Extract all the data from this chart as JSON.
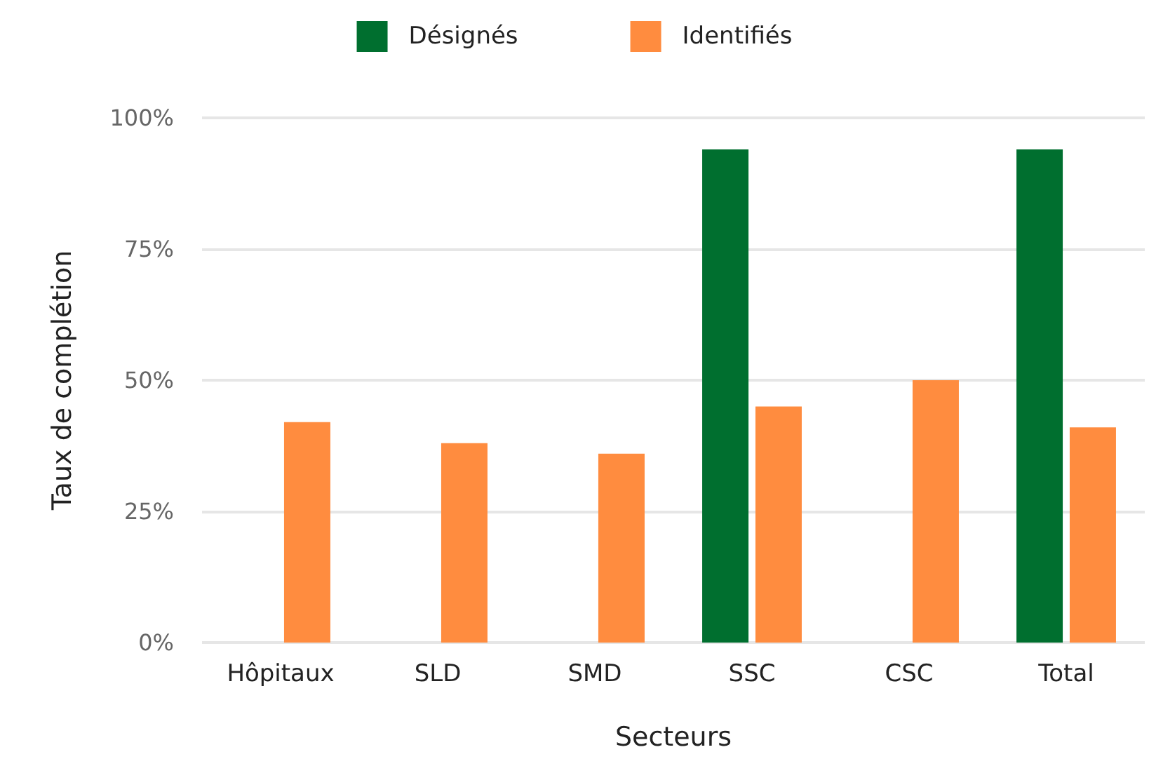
{
  "chart_data": {
    "type": "bar",
    "xlabel": "Secteurs",
    "ylabel": "Taux de complétion",
    "categories": [
      "Hôpitaux",
      "SLD",
      "SMD",
      "SSC",
      "CSC",
      "Total"
    ],
    "series": [
      {
        "name": "Désignés",
        "color": "#006f2f",
        "values": [
          null,
          null,
          null,
          94,
          null,
          94
        ]
      },
      {
        "name": "Identifiés",
        "color": "#ff8c3f",
        "values": [
          42,
          38,
          36,
          45,
          50,
          41
        ]
      }
    ],
    "ylim": [
      0,
      100
    ],
    "yticks": [
      {
        "value": 0,
        "label": "0%"
      },
      {
        "value": 25,
        "label": "25%"
      },
      {
        "value": 50,
        "label": "50%"
      },
      {
        "value": 75,
        "label": "75%"
      },
      {
        "value": 100,
        "label": "100%"
      }
    ],
    "grid": "y",
    "legend": "top"
  }
}
